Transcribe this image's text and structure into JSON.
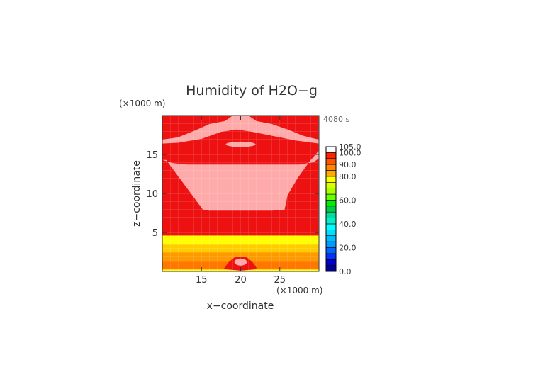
{
  "chart_data": {
    "type": "heatmap",
    "title": "Humidity of H2O−g",
    "xlabel": "x−coordinate",
    "ylabel": "z−coordinate",
    "x_unit": "(×1000 m)",
    "y_unit": "(×1000 m)",
    "time_label": "4080 s",
    "xlim": [
      10,
      30
    ],
    "ylim": [
      0,
      20
    ],
    "x_ticks": [
      15,
      20,
      25
    ],
    "y_ticks": [
      5,
      10,
      15
    ],
    "colorbar": {
      "ticks": [
        "0.0",
        "20.0",
        "40.0",
        "60.0",
        "80.0",
        "90.0",
        "100.0",
        "105.0"
      ],
      "levels": [
        {
          "from": 0,
          "to": 5,
          "color": "#000099"
        },
        {
          "from": 5,
          "to": 10,
          "color": "#0000cc"
        },
        {
          "from": 10,
          "to": 15,
          "color": "#0033ff"
        },
        {
          "from": 15,
          "to": 20,
          "color": "#0066ff"
        },
        {
          "from": 20,
          "to": 25,
          "color": "#0099ff"
        },
        {
          "from": 25,
          "to": 30,
          "color": "#00bbff"
        },
        {
          "from": 30,
          "to": 35,
          "color": "#00ddff"
        },
        {
          "from": 35,
          "to": 40,
          "color": "#00ffff"
        },
        {
          "from": 40,
          "to": 45,
          "color": "#00eecc"
        },
        {
          "from": 45,
          "to": 50,
          "color": "#00dd99"
        },
        {
          "from": 50,
          "to": 55,
          "color": "#00cc44"
        },
        {
          "from": 55,
          "to": 60,
          "color": "#00ee00"
        },
        {
          "from": 60,
          "to": 65,
          "color": "#66ff00"
        },
        {
          "from": 65,
          "to": 70,
          "color": "#aaff00"
        },
        {
          "from": 70,
          "to": 75,
          "color": "#ddff00"
        },
        {
          "from": 75,
          "to": 80,
          "color": "#ffff00"
        },
        {
          "from": 80,
          "to": 85,
          "color": "#ffaa00"
        },
        {
          "from": 85,
          "to": 90,
          "color": "#ff8800"
        },
        {
          "from": 90,
          "to": 95,
          "color": "#ff5500"
        },
        {
          "from": 95,
          "to": 100,
          "color": "#ff2200"
        },
        {
          "from": 100,
          "to": 105,
          "color": "#ffffff"
        }
      ]
    },
    "regions": [
      {
        "name": "background",
        "value": 98,
        "color": "#ee1111",
        "shape": "rect",
        "x": [
          10,
          30
        ],
        "y": [
          0,
          20
        ]
      },
      {
        "name": "lower-layer-orange-1",
        "value": 88,
        "color": "#ff7700",
        "shape": "rect",
        "x": [
          10,
          30
        ],
        "y": [
          0,
          1.2
        ]
      },
      {
        "name": "lower-layer-orange-2",
        "value": 86,
        "color": "#ff9900",
        "shape": "rect",
        "x": [
          10,
          30
        ],
        "y": [
          1.2,
          2.4
        ]
      },
      {
        "name": "lower-layer-orange-3",
        "value": 83,
        "color": "#ffcc00",
        "shape": "rect",
        "x": [
          10,
          30
        ],
        "y": [
          2.4,
          3.4
        ]
      },
      {
        "name": "lower-layer-yellow",
        "value": 78,
        "color": "#ffff00",
        "shape": "rect",
        "x": [
          10,
          30
        ],
        "y": [
          3.4,
          4.6
        ]
      },
      {
        "name": "bottom-strip",
        "value": 76,
        "color": "#ffff00",
        "shape": "rect",
        "x": [
          10,
          30
        ],
        "y": [
          0,
          0.25
        ]
      },
      {
        "name": "upper-saturated-zone",
        "value": 103,
        "color": "#ffaaaa",
        "shape": "polygon",
        "x": [
          10,
          11.3,
          13.2,
          15.5,
          17.5,
          19.5,
          21.5,
          23.5,
          25.5,
          27.5,
          29.3,
          30,
          30,
          28.8,
          27.3,
          26,
          25.6,
          24,
          22,
          20,
          18,
          16,
          15.2,
          13.8,
          11.8,
          10.5,
          10
        ],
        "y": [
          14.3,
          13.9,
          13.7,
          13.7,
          13.7,
          13.7,
          13.7,
          13.7,
          13.7,
          13.7,
          14,
          14.5,
          15.5,
          14.1,
          12,
          9.8,
          7.9,
          7.8,
          7.8,
          7.8,
          7.8,
          7.8,
          7.9,
          9.8,
          12.5,
          14.3,
          14.3
        ]
      },
      {
        "name": "top-arc-band",
        "value": 103,
        "color": "#ffaaaa",
        "shape": "polygon",
        "x": [
          10,
          12,
          15,
          17.5,
          19.5,
          21.5,
          24,
          27,
          30,
          30,
          28,
          26,
          24,
          22,
          21,
          19,
          18,
          16,
          14,
          12,
          10
        ],
        "y": [
          16.4,
          16.5,
          17,
          17.9,
          18.2,
          17.9,
          17.4,
          16.8,
          16.4,
          16.9,
          17.4,
          18.2,
          18.9,
          19.3,
          20,
          20,
          19.3,
          18.9,
          18,
          17.2,
          16.9
        ]
      },
      {
        "name": "top-small-lens",
        "value": 103,
        "color": "#ffaaaa",
        "shape": "ellipse",
        "cx": 20,
        "cy": 16.3,
        "rx": 1.9,
        "ry": 0.35
      },
      {
        "name": "surface-plume",
        "value": 98,
        "color": "#ee1111",
        "shape": "polygon",
        "x": [
          17.8,
          18.5,
          19.2,
          20,
          20.8,
          21.5,
          22.2,
          20,
          17.8
        ],
        "y": [
          0.3,
          1.2,
          1.8,
          1.9,
          1.8,
          1.2,
          0.3,
          0.1,
          0.3
        ]
      },
      {
        "name": "surface-plume-core",
        "value": 103,
        "color": "#ffaaaa",
        "shape": "ellipse",
        "cx": 20,
        "cy": 1.2,
        "rx": 0.8,
        "ry": 0.45
      }
    ]
  }
}
